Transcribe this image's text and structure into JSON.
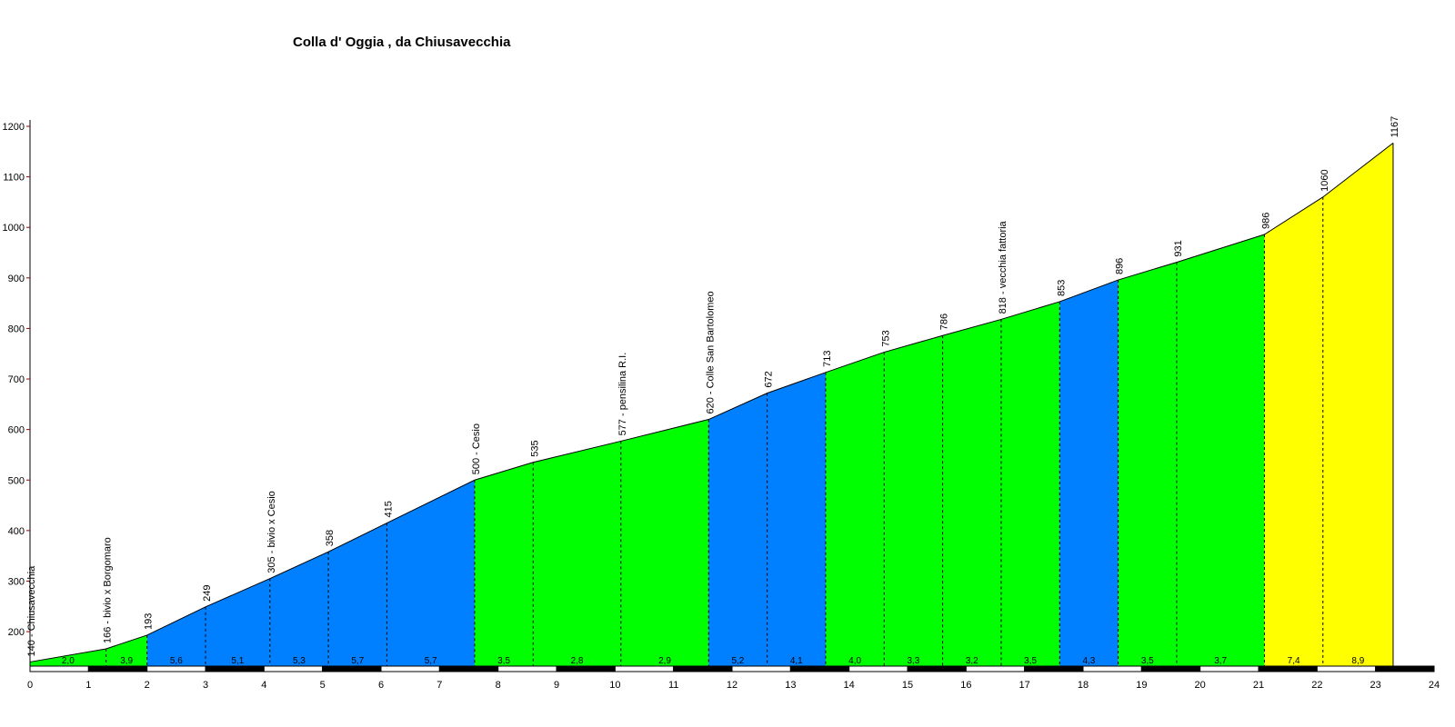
{
  "chart_data": {
    "type": "area",
    "title": "Colla d' Oggia , da Chiusavecchia",
    "xlabel": "",
    "ylabel": "",
    "xlim": [
      0,
      24
    ],
    "ylim": [
      130,
      1200
    ],
    "x_ticks": [
      0,
      1,
      2,
      3,
      4,
      5,
      6,
      7,
      8,
      9,
      10,
      11,
      12,
      13,
      14,
      15,
      16,
      17,
      18,
      19,
      20,
      21,
      22,
      23,
      24
    ],
    "y_ticks": [
      200,
      300,
      400,
      500,
      600,
      700,
      800,
      900,
      1000,
      1100,
      1200
    ],
    "grid": false,
    "legend": "none",
    "colors": {
      "green": "#00ff00",
      "blue": "#0080ff",
      "yellow": "#ffff00",
      "axis": "#000000",
      "axis_tick": "#990000"
    },
    "profile": [
      {
        "x": 0.0,
        "y": 140,
        "label": "140 - Chiusavecchia"
      },
      {
        "x": 1.3,
        "y": 166,
        "label": "166 - bivio x Borgomaro"
      },
      {
        "x": 2.0,
        "y": 193,
        "label": "193"
      },
      {
        "x": 3.0,
        "y": 249,
        "label": "249"
      },
      {
        "x": 4.1,
        "y": 305,
        "label": "305 - bivio x Cesio"
      },
      {
        "x": 5.1,
        "y": 358,
        "label": "358"
      },
      {
        "x": 6.1,
        "y": 415,
        "label": "415"
      },
      {
        "x": 7.6,
        "y": 500,
        "label": "500 - Cesio"
      },
      {
        "x": 8.6,
        "y": 535,
        "label": "535"
      },
      {
        "x": 10.1,
        "y": 577,
        "label": "577 - pensilina R.I."
      },
      {
        "x": 11.6,
        "y": 620,
        "label": "620 - Colle San Bartolomeo"
      },
      {
        "x": 12.6,
        "y": 672,
        "label": "672"
      },
      {
        "x": 13.6,
        "y": 713,
        "label": "713"
      },
      {
        "x": 14.6,
        "y": 753,
        "label": "753"
      },
      {
        "x": 15.6,
        "y": 786,
        "label": "786"
      },
      {
        "x": 16.6,
        "y": 818,
        "label": "818 - vecchia fattoria"
      },
      {
        "x": 17.6,
        "y": 853,
        "label": "853"
      },
      {
        "x": 18.6,
        "y": 896,
        "label": "896"
      },
      {
        "x": 19.6,
        "y": 931,
        "label": "931"
      },
      {
        "x": 21.1,
        "y": 986,
        "label": "986"
      },
      {
        "x": 22.1,
        "y": 1060,
        "label": "1060"
      },
      {
        "x": 23.3,
        "y": 1167,
        "label": "1167"
      }
    ],
    "segment_gradients": [
      "2,0",
      "3,9",
      "5,6",
      "5,1",
      "5,3",
      "5,7",
      "5,7",
      "3,5",
      "2,8",
      "2,9",
      "5,2",
      "4,1",
      "4,0",
      "3,3",
      "3,2",
      "3,5",
      "4,3",
      "3,5",
      "3,7",
      "7,4",
      "8,9"
    ],
    "segment_colors": [
      "green",
      "green",
      "blue",
      "blue",
      "blue",
      "blue",
      "blue",
      "green",
      "green",
      "green",
      "blue",
      "blue",
      "green",
      "green",
      "green",
      "green",
      "blue",
      "green",
      "green",
      "yellow",
      "yellow"
    ]
  }
}
